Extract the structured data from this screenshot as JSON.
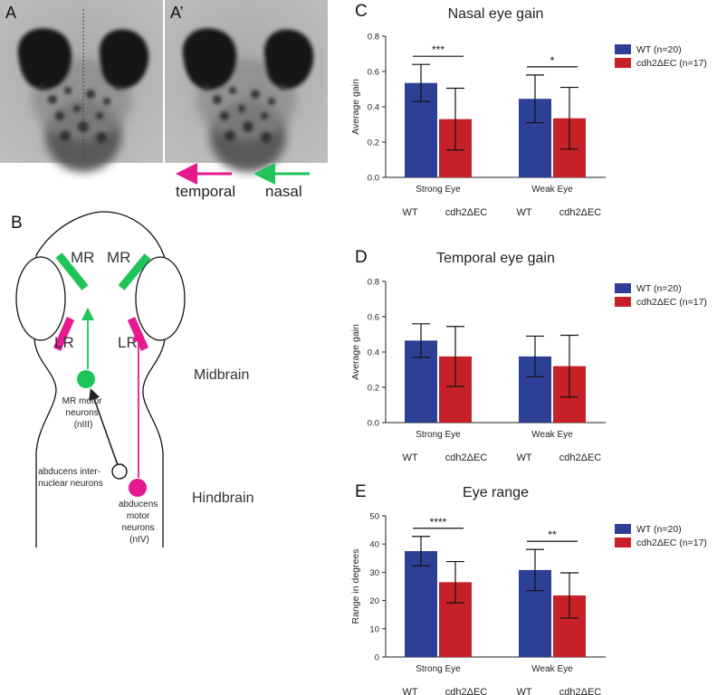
{
  "colors": {
    "wt": "#2e3f96",
    "mut": "#c62128",
    "green": "#20c55a",
    "magenta": "#e8188e",
    "black": "#222222"
  },
  "panels": {
    "A": {
      "label": "A",
      "prime": "A’"
    },
    "arrows": {
      "temporal": "temporal",
      "nasal": "nasal"
    },
    "B": {
      "label": "B",
      "mr_left": "MR",
      "mr_right": "MR",
      "lr_left": "LR",
      "lr_right": "LR",
      "mr_motor": [
        "MR motor",
        "neurons",
        "(nIII)"
      ],
      "internuclear": [
        "abducens inter-",
        "nuclear neurons"
      ],
      "abducens_motor": [
        "abducens",
        "motor",
        "neurons",
        "(nIV)"
      ],
      "midbrain": "Midbrain",
      "hindbrain": "Hindbrain"
    }
  },
  "chart_data": [
    {
      "panel": "C",
      "type": "bar",
      "title": "Nasal eye gain",
      "ylabel": "Average gain",
      "categories": [
        "Strong Eye",
        "Weak Eye"
      ],
      "group_labels": [
        "WT",
        "cdh2ΔEC"
      ],
      "ylim": [
        0,
        0.8
      ],
      "yticks": [
        "0.0",
        "0.2",
        "0.4",
        "0.6",
        "0.8"
      ],
      "series": [
        {
          "name": "WT (n=20)",
          "values": [
            0.535,
            0.445
          ],
          "err": [
            0.105,
            0.135
          ]
        },
        {
          "name": "cdh2ΔEC (n=17)",
          "values": [
            0.33,
            0.335
          ],
          "err": [
            0.175,
            0.175
          ]
        }
      ],
      "significance": [
        "***",
        "*"
      ],
      "legend": "right"
    },
    {
      "panel": "D",
      "type": "bar",
      "title": "Temporal eye gain",
      "ylabel": "Average gain",
      "categories": [
        "Strong Eye",
        "Weak Eye"
      ],
      "group_labels": [
        "WT",
        "cdh2ΔEC"
      ],
      "ylim": [
        0,
        0.8
      ],
      "yticks": [
        "0.0",
        "0.2",
        "0.4",
        "0.6",
        "0.8"
      ],
      "series": [
        {
          "name": "WT (n=20)",
          "values": [
            0.465,
            0.375
          ],
          "err": [
            0.095,
            0.115
          ]
        },
        {
          "name": "cdh2ΔEC (n=17)",
          "values": [
            0.375,
            0.32
          ],
          "err": [
            0.17,
            0.175
          ]
        }
      ],
      "significance": [
        "",
        ""
      ],
      "legend": "right"
    },
    {
      "panel": "E",
      "type": "bar",
      "title": "Eye range",
      "ylabel": "Range in degrees",
      "categories": [
        "Strong Eye",
        "Weak Eye"
      ],
      "group_labels": [
        "WT",
        "cdh2ΔEC"
      ],
      "ylim": [
        0,
        50
      ],
      "yticks": [
        "0",
        "10",
        "20",
        "30",
        "40",
        "50"
      ],
      "series": [
        {
          "name": "WT (n=20)",
          "values": [
            37.5,
            30.8
          ],
          "err": [
            5.2,
            7.3
          ]
        },
        {
          "name": "cdh2ΔEC (n=17)",
          "values": [
            26.5,
            21.8
          ],
          "err": [
            7.3,
            8.0
          ]
        }
      ],
      "significance": [
        "****",
        "**"
      ],
      "legend": "right"
    }
  ]
}
